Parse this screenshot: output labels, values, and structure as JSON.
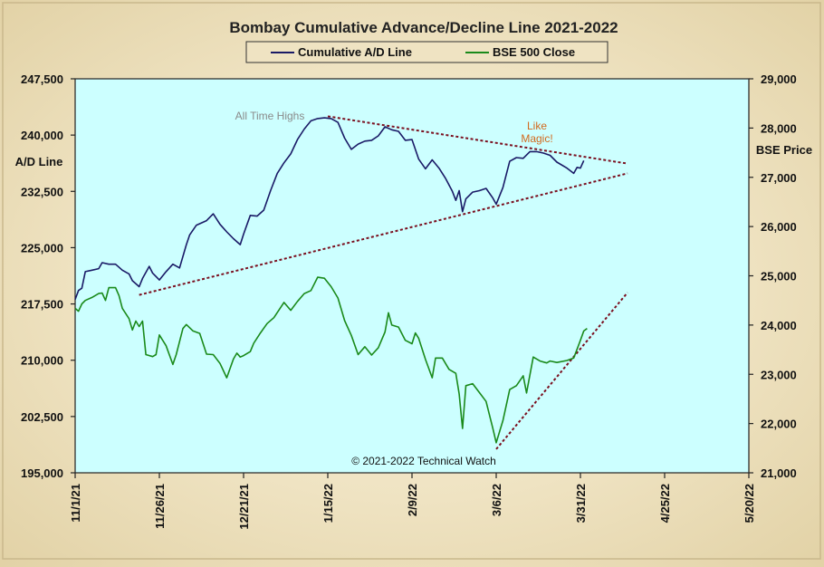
{
  "chart_data": {
    "type": "line",
    "title": "Bombay Cumulative Advance/Decline Line 2021-2022",
    "left_axis": {
      "label": "A/D Line",
      "ylim": [
        195000,
        247500
      ],
      "ticks": [
        "247,500",
        "240,000",
        "232,500",
        "225,000",
        "217,500",
        "210,000",
        "202,500",
        "195,000"
      ],
      "tick_values": [
        247500,
        240000,
        232500,
        225000,
        217500,
        210000,
        202500,
        195000
      ]
    },
    "right_axis": {
      "label": "BSE Price",
      "ylim": [
        21000,
        29000
      ],
      "ticks": [
        "29,000",
        "28,000",
        "27,000",
        "26,000",
        "25,000",
        "24,000",
        "23,000",
        "22,000",
        "21,000"
      ],
      "tick_values": [
        29000,
        28000,
        27000,
        26000,
        25000,
        24000,
        23000,
        22000,
        21000
      ]
    },
    "x_axis": {
      "start": "2021-11-01",
      "end": "2022-05-20",
      "ticks": [
        "11/1/21",
        "11/26/21",
        "12/21/21",
        "1/15/22",
        "2/9/22",
        "3/6/22",
        "3/31/22",
        "4/25/22",
        "5/20/22"
      ],
      "tick_dates": [
        "2021-11-01",
        "2021-11-26",
        "2021-12-21",
        "2022-01-15",
        "2022-02-09",
        "2022-03-06",
        "2022-03-31",
        "2022-04-25",
        "2022-05-20"
      ]
    },
    "legend": {
      "placement": "top-center"
    },
    "series": [
      {
        "name": "Cumulative A/D Line",
        "axis": "left",
        "color": "#1a1a66",
        "points": [
          [
            "2021-11-01",
            218100
          ],
          [
            "2021-11-02",
            219300
          ],
          [
            "2021-11-03",
            219600
          ],
          [
            "2021-11-04",
            221800
          ],
          [
            "2021-11-06",
            222000
          ],
          [
            "2021-11-08",
            222200
          ],
          [
            "2021-11-09",
            223000
          ],
          [
            "2021-11-11",
            222800
          ],
          [
            "2021-11-13",
            222800
          ],
          [
            "2021-11-15",
            222000
          ],
          [
            "2021-11-17",
            221500
          ],
          [
            "2021-11-18",
            220600
          ],
          [
            "2021-11-20",
            219800
          ],
          [
            "2021-11-21",
            220900
          ],
          [
            "2021-11-23",
            222500
          ],
          [
            "2021-11-24",
            221600
          ],
          [
            "2021-11-26",
            220700
          ],
          [
            "2021-11-28",
            221800
          ],
          [
            "2021-11-30",
            222800
          ],
          [
            "2021-12-02",
            222300
          ],
          [
            "2021-12-04",
            225400
          ],
          [
            "2021-12-05",
            226700
          ],
          [
            "2021-12-07",
            228000
          ],
          [
            "2021-12-10",
            228600
          ],
          [
            "2021-12-12",
            229500
          ],
          [
            "2021-12-14",
            228100
          ],
          [
            "2021-12-16",
            227100
          ],
          [
            "2021-12-18",
            226200
          ],
          [
            "2021-12-20",
            225400
          ],
          [
            "2021-12-21",
            226800
          ],
          [
            "2021-12-23",
            229300
          ],
          [
            "2021-12-25",
            229200
          ],
          [
            "2021-12-27",
            230000
          ],
          [
            "2021-12-29",
            232600
          ],
          [
            "2021-12-31",
            234900
          ],
          [
            "2022-01-02",
            236300
          ],
          [
            "2022-01-04",
            237500
          ],
          [
            "2022-01-06",
            239400
          ],
          [
            "2022-01-08",
            240800
          ],
          [
            "2022-01-10",
            241900
          ],
          [
            "2022-01-12",
            242200
          ],
          [
            "2022-01-14",
            242300
          ],
          [
            "2022-01-16",
            242200
          ],
          [
            "2022-01-18",
            241700
          ],
          [
            "2022-01-20",
            239600
          ],
          [
            "2022-01-22",
            238100
          ],
          [
            "2022-01-24",
            238800
          ],
          [
            "2022-01-26",
            239200
          ],
          [
            "2022-01-28",
            239300
          ],
          [
            "2022-01-30",
            239900
          ],
          [
            "2022-02-01",
            241100
          ],
          [
            "2022-02-03",
            240700
          ],
          [
            "2022-02-05",
            240500
          ],
          [
            "2022-02-07",
            239300
          ],
          [
            "2022-02-09",
            239400
          ],
          [
            "2022-02-11",
            236800
          ],
          [
            "2022-02-13",
            235500
          ],
          [
            "2022-02-15",
            236700
          ],
          [
            "2022-02-17",
            235600
          ],
          [
            "2022-02-19",
            234200
          ],
          [
            "2022-02-21",
            232500
          ],
          [
            "2022-02-22",
            231300
          ],
          [
            "2022-02-23",
            232600
          ],
          [
            "2022-02-24",
            229800
          ],
          [
            "2022-02-25",
            231500
          ],
          [
            "2022-02-27",
            232400
          ],
          [
            "2022-03-01",
            232600
          ],
          [
            "2022-03-03",
            232900
          ],
          [
            "2022-03-05",
            231600
          ],
          [
            "2022-03-06",
            230800
          ],
          [
            "2022-03-08",
            233000
          ],
          [
            "2022-03-10",
            236500
          ],
          [
            "2022-03-12",
            237000
          ],
          [
            "2022-03-14",
            236900
          ],
          [
            "2022-03-16",
            237800
          ],
          [
            "2022-03-18",
            237800
          ],
          [
            "2022-03-20",
            237600
          ],
          [
            "2022-03-22",
            237300
          ],
          [
            "2022-03-24",
            236400
          ],
          [
            "2022-03-27",
            235600
          ],
          [
            "2022-03-29",
            234900
          ],
          [
            "2022-03-30",
            235700
          ],
          [
            "2022-03-31",
            235600
          ],
          [
            "2022-04-01",
            236600
          ]
        ]
      },
      {
        "name": "BSE 500 Close",
        "axis": "right",
        "color": "#1a8a1a",
        "points": [
          [
            "2021-11-01",
            24340
          ],
          [
            "2021-11-02",
            24280
          ],
          [
            "2021-11-03",
            24430
          ],
          [
            "2021-11-04",
            24500
          ],
          [
            "2021-11-06",
            24560
          ],
          [
            "2021-11-08",
            24640
          ],
          [
            "2021-11-09",
            24650
          ],
          [
            "2021-11-10",
            24500
          ],
          [
            "2021-11-11",
            24760
          ],
          [
            "2021-11-13",
            24760
          ],
          [
            "2021-11-14",
            24600
          ],
          [
            "2021-11-15",
            24340
          ],
          [
            "2021-11-17",
            24130
          ],
          [
            "2021-11-18",
            23900
          ],
          [
            "2021-11-19",
            24080
          ],
          [
            "2021-11-20",
            23970
          ],
          [
            "2021-11-21",
            24080
          ],
          [
            "2021-11-22",
            23400
          ],
          [
            "2021-11-24",
            23360
          ],
          [
            "2021-11-25",
            23400
          ],
          [
            "2021-11-26",
            23800
          ],
          [
            "2021-11-28",
            23580
          ],
          [
            "2021-11-30",
            23200
          ],
          [
            "2021-12-01",
            23400
          ],
          [
            "2021-12-03",
            23930
          ],
          [
            "2021-12-04",
            24010
          ],
          [
            "2021-12-06",
            23880
          ],
          [
            "2021-12-08",
            23830
          ],
          [
            "2021-12-10",
            23410
          ],
          [
            "2021-12-12",
            23400
          ],
          [
            "2021-12-14",
            23220
          ],
          [
            "2021-12-16",
            22930
          ],
          [
            "2021-12-18",
            23310
          ],
          [
            "2021-12-19",
            23430
          ],
          [
            "2021-12-20",
            23350
          ],
          [
            "2021-12-21",
            23380
          ],
          [
            "2021-12-23",
            23460
          ],
          [
            "2021-12-24",
            23630
          ],
          [
            "2021-12-26",
            23840
          ],
          [
            "2021-12-28",
            24030
          ],
          [
            "2021-12-30",
            24150
          ],
          [
            "2022-01-02",
            24460
          ],
          [
            "2022-01-04",
            24300
          ],
          [
            "2022-01-06",
            24480
          ],
          [
            "2022-01-08",
            24640
          ],
          [
            "2022-01-10",
            24700
          ],
          [
            "2022-01-12",
            24970
          ],
          [
            "2022-01-14",
            24950
          ],
          [
            "2022-01-16",
            24780
          ],
          [
            "2022-01-18",
            24550
          ],
          [
            "2022-01-20",
            24090
          ],
          [
            "2022-01-22",
            23790
          ],
          [
            "2022-01-24",
            23400
          ],
          [
            "2022-01-26",
            23560
          ],
          [
            "2022-01-28",
            23390
          ],
          [
            "2022-01-30",
            23540
          ],
          [
            "2022-02-01",
            23860
          ],
          [
            "2022-02-02",
            24250
          ],
          [
            "2022-02-03",
            24000
          ],
          [
            "2022-02-05",
            23960
          ],
          [
            "2022-02-07",
            23690
          ],
          [
            "2022-02-09",
            23620
          ],
          [
            "2022-02-10",
            23840
          ],
          [
            "2022-02-11",
            23730
          ],
          [
            "2022-02-13",
            23300
          ],
          [
            "2022-02-15",
            22930
          ],
          [
            "2022-02-16",
            23330
          ],
          [
            "2022-02-18",
            23330
          ],
          [
            "2022-02-20",
            23100
          ],
          [
            "2022-02-22",
            23020
          ],
          [
            "2022-02-23",
            22600
          ],
          [
            "2022-02-24",
            21900
          ],
          [
            "2022-02-25",
            22770
          ],
          [
            "2022-02-27",
            22810
          ],
          [
            "2022-03-01",
            22630
          ],
          [
            "2022-03-03",
            22450
          ],
          [
            "2022-03-05",
            21900
          ],
          [
            "2022-03-06",
            21610
          ],
          [
            "2022-03-08",
            22060
          ],
          [
            "2022-03-10",
            22690
          ],
          [
            "2022-03-12",
            22770
          ],
          [
            "2022-03-14",
            22970
          ],
          [
            "2022-03-15",
            22620
          ],
          [
            "2022-03-17",
            23350
          ],
          [
            "2022-03-19",
            23270
          ],
          [
            "2022-03-21",
            23230
          ],
          [
            "2022-03-22",
            23270
          ],
          [
            "2022-03-24",
            23240
          ],
          [
            "2022-03-27",
            23280
          ],
          [
            "2022-03-29",
            23330
          ],
          [
            "2022-03-31",
            23690
          ],
          [
            "2022-04-01",
            23880
          ],
          [
            "2022-04-02",
            23930
          ]
        ]
      }
    ],
    "trendlines": [
      {
        "name": "A/D upper trendline",
        "axis": "left",
        "color": "#7a0f1f",
        "from": [
          "2022-01-15",
          242500
        ],
        "to": [
          "2022-04-14",
          236200
        ]
      },
      {
        "name": "A/D lower trendline",
        "axis": "left",
        "color": "#7a0f1f",
        "from": [
          "2021-11-20",
          218700
        ],
        "to": [
          "2022-04-14",
          234900
        ]
      },
      {
        "name": "BSE support trendline",
        "axis": "right",
        "color": "#7a0f1f",
        "from": [
          "2022-03-06",
          21480
        ],
        "to": [
          "2022-04-14",
          24660
        ]
      }
    ],
    "annotations": [
      {
        "text": "All Time Highs",
        "color": "#8a8a8a"
      },
      {
        "text": "Like",
        "color": "#d2691e"
      },
      {
        "text": "Magic!",
        "color": "#d2691e"
      }
    ],
    "copyright": "© 2021-2022  Technical  Watch",
    "colors": {
      "plot_bg": "#ccffff",
      "frame": "#e9ddb8"
    }
  }
}
